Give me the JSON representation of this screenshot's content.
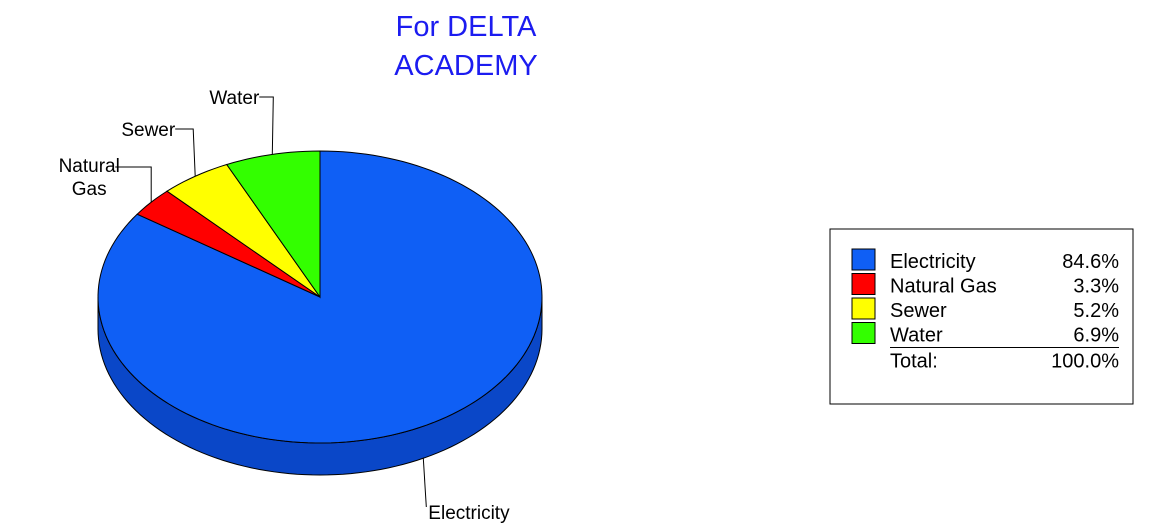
{
  "chart_data": {
    "type": "pie",
    "title_lines": [
      "For DELTA",
      "ACADEMY"
    ],
    "slices": [
      {
        "label": "Electricity",
        "label_lines": [
          "Electricity"
        ],
        "value": 84.6,
        "display": "84.6%",
        "color": "#0f5ff5",
        "side_color": "#0a47c8"
      },
      {
        "label": "Natural Gas",
        "label_lines": [
          "Natural",
          "Gas"
        ],
        "value": 3.3,
        "display": "3.3%",
        "color": "#ff0000",
        "side_color": "#c80000"
      },
      {
        "label": "Sewer",
        "label_lines": [
          "Sewer"
        ],
        "value": 5.2,
        "display": "5.2%",
        "color": "#ffff00",
        "side_color": "#c8c800"
      },
      {
        "label": "Water",
        "label_lines": [
          "Water"
        ],
        "value": 6.9,
        "display": "6.9%",
        "color": "#33ff00",
        "side_color": "#22c800"
      }
    ],
    "legend": {
      "position": "right",
      "total_label": "Total:",
      "total_value": "100.0%"
    }
  }
}
